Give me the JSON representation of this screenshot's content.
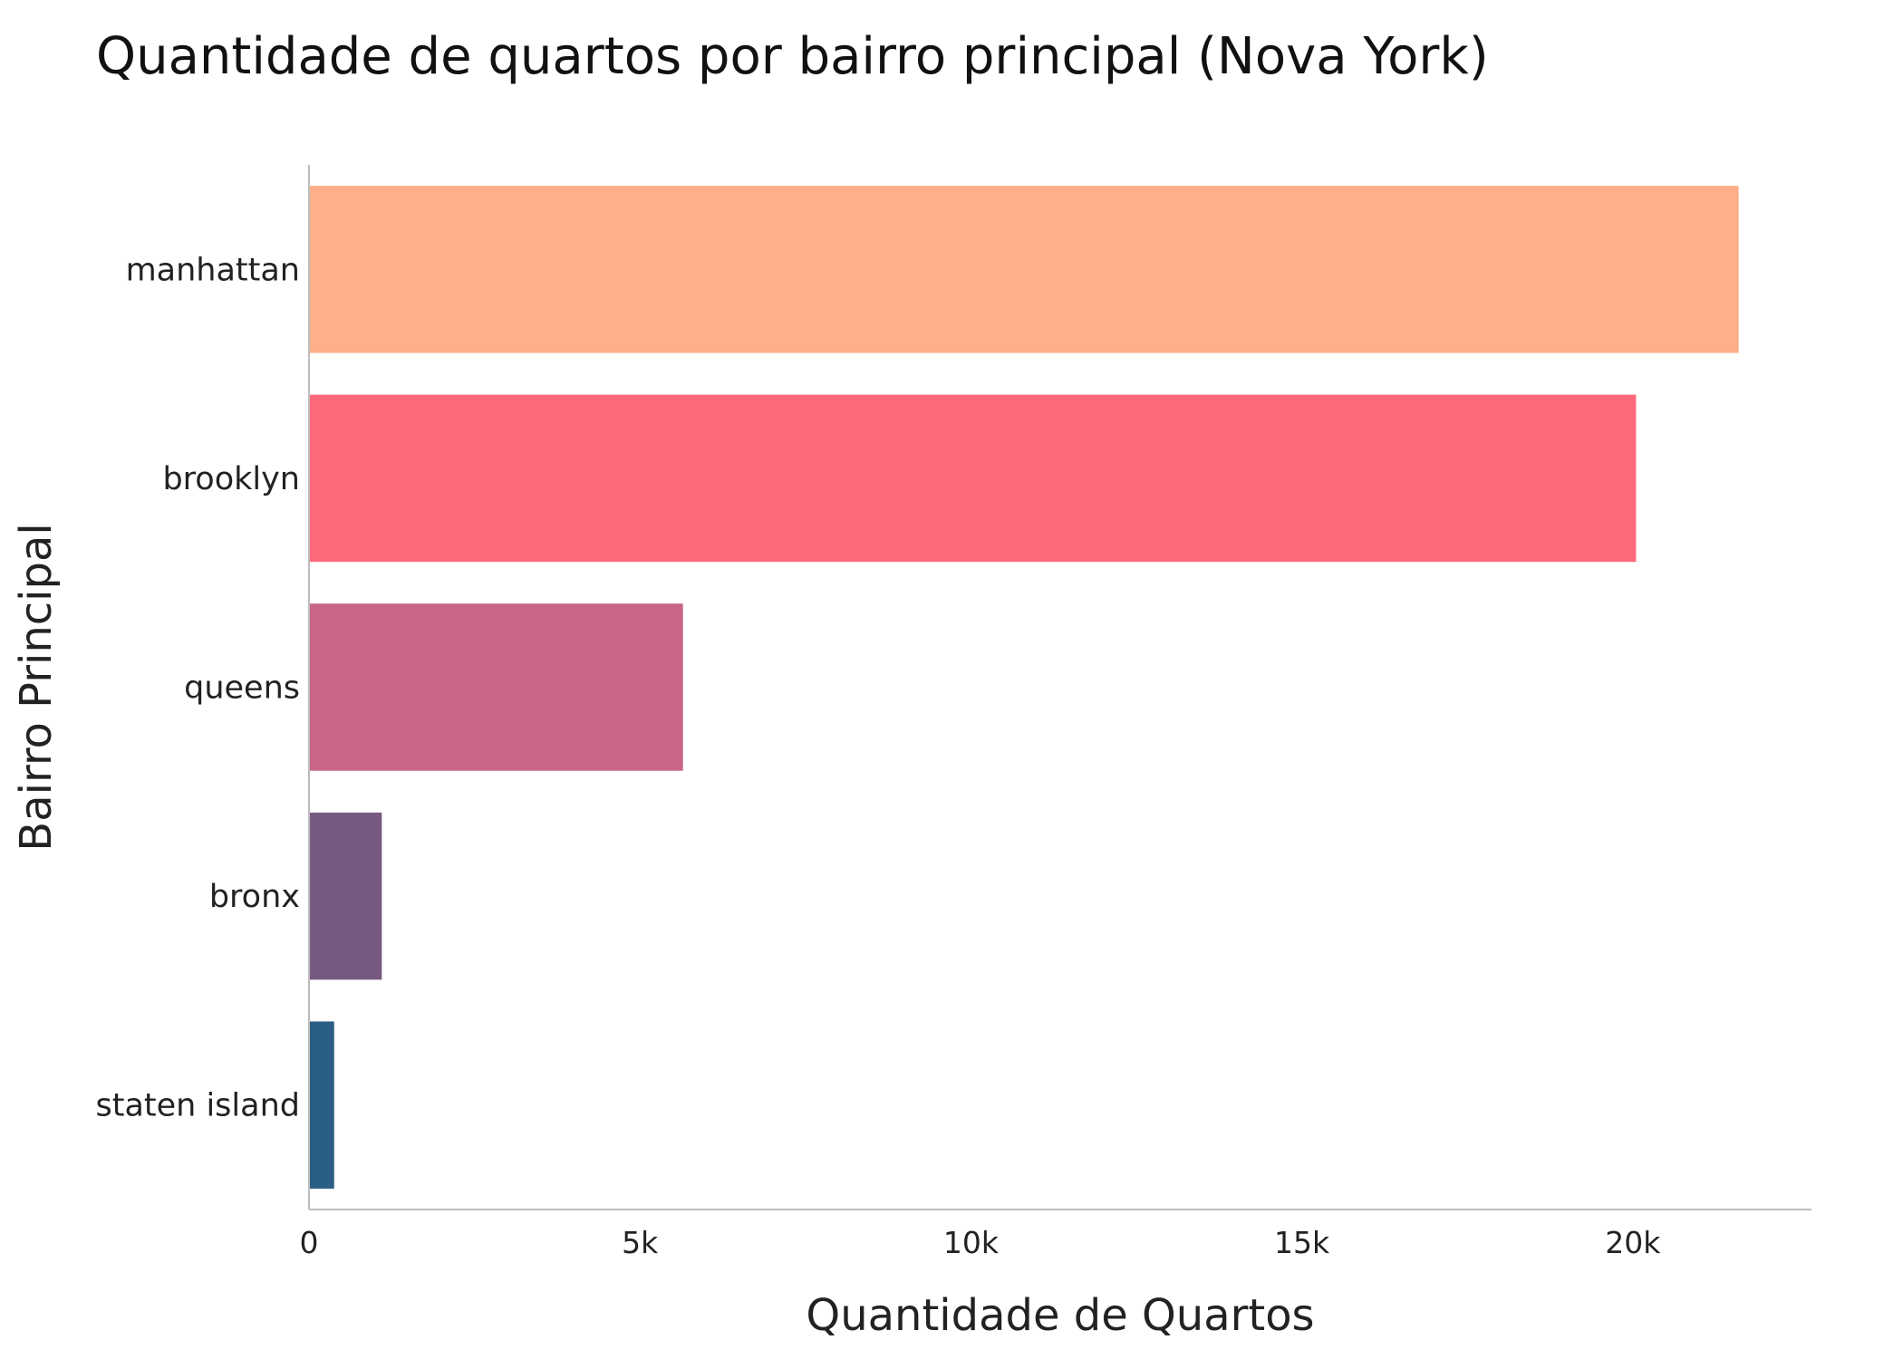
{
  "chart_data": {
    "type": "bar",
    "orientation": "horizontal",
    "title": "Quantidade de quartos por bairro principal (Nova York)",
    "xlabel": "Quantidade de Quartos",
    "ylabel": "Bairro Principal",
    "categories": [
      "manhattan",
      "brooklyn",
      "queens",
      "bronx",
      "staten island"
    ],
    "values": [
      21600,
      20050,
      5650,
      1100,
      380
    ],
    "colors": [
      "#ffb08a",
      "#ff697c",
      "#c96685",
      "#775a80",
      "#2b5e84"
    ],
    "xlim": [
      0,
      22700
    ],
    "xticks": [
      0,
      5000,
      10000,
      15000,
      20000
    ],
    "xtick_labels": [
      "0",
      "5k",
      "10k",
      "15k",
      "20k"
    ],
    "grid": false,
    "legend": "none"
  }
}
